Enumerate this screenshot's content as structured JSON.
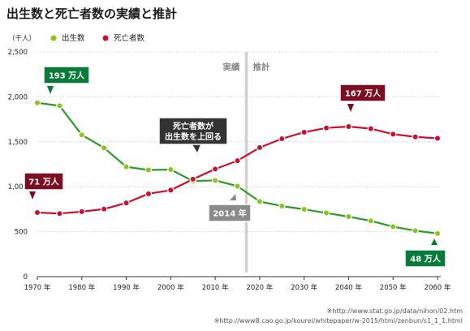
{
  "title": "出生数と死亡者数の実績と推計",
  "unit": "（千人）",
  "legend": [
    {
      "label": "出生数",
      "color": "#8dc21f"
    },
    {
      "label": "死亡者数",
      "color": "#c8102e"
    }
  ],
  "regions": {
    "actual": "実績",
    "forecast": "推計"
  },
  "colors": {
    "birth_line": "#2e9a2e",
    "birth_marker": "#8dc21f",
    "death_line": "#c8102e",
    "death_marker": "#c8102e",
    "callout_green": "#0a7a3a",
    "callout_red": "#7a0f24",
    "callout_dark": "#333333",
    "callout_gray": "#8a8a8a",
    "divider": "#d0d0d0"
  },
  "chart_data": {
    "type": "line",
    "title": "出生数と死亡者数の実績と推計",
    "ylabel": "（千人）",
    "x_tick_labels": [
      "1970 年",
      "1980 年",
      "1990 年",
      "2000 年",
      "2010 年",
      "2020 年",
      "2030 年",
      "2040 年",
      "2050 年",
      "2060 年"
    ],
    "y_tick_labels": [
      "0",
      "500",
      "1,000",
      "1,500",
      "2,000",
      "2,500"
    ],
    "x_ticks": [
      1970,
      1980,
      1990,
      2000,
      2010,
      2020,
      2030,
      2040,
      2050,
      2060
    ],
    "y_ticks": [
      0,
      500,
      1000,
      1500,
      2000,
      2500
    ],
    "xlim": [
      1970,
      2060
    ],
    "ylim": [
      0,
      2500
    ],
    "grid": true,
    "legend_position": "top-left",
    "divider_x": 2017,
    "series": [
      {
        "name": "出生数",
        "x": [
          1970,
          1975,
          1980,
          1985,
          1990,
          1995,
          2000,
          2005,
          2010,
          2015,
          2020,
          2025,
          2030,
          2035,
          2040,
          2045,
          2050,
          2055,
          2060
        ],
        "y": [
          1934,
          1901,
          1577,
          1432,
          1222,
          1187,
          1191,
          1063,
          1071,
          1006,
          836,
          785,
          749,
          708,
          668,
          620,
          556,
          511,
          480
        ]
      },
      {
        "name": "死亡者数",
        "x": [
          1970,
          1975,
          1980,
          1985,
          1990,
          1995,
          2000,
          2005,
          2010,
          2015,
          2020,
          2025,
          2030,
          2035,
          2040,
          2045,
          2050,
          2055,
          2060
        ],
        "y": [
          713,
          702,
          723,
          752,
          820,
          922,
          962,
          1084,
          1197,
          1290,
          1436,
          1534,
          1607,
          1654,
          1670,
          1646,
          1585,
          1555,
          1539
        ]
      }
    ],
    "annotations": [
      {
        "text": "193 万人",
        "style": "green"
      },
      {
        "text": "71 万人",
        "style": "red"
      },
      {
        "text": "死亡者数が",
        "text2": "出生数を上回る",
        "style": "dark"
      },
      {
        "text": "2014 年",
        "style": "gray"
      },
      {
        "text": "167 万人",
        "style": "red"
      },
      {
        "text": "48 万人",
        "style": "green"
      }
    ]
  },
  "sources": [
    "※http://www.stat.go.jp/data/nihon/02.htm",
    "※http://www8.cao.go.jp/kourei/whitepaper/w-2015/html/zenbun/s1_1_1.html"
  ]
}
